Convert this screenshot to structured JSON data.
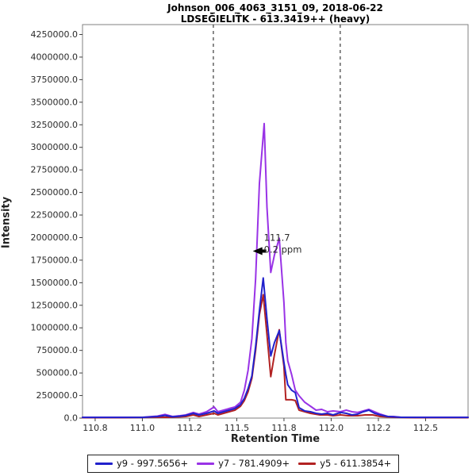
{
  "title": {
    "line1": "Johnson_006_4063_3151_09, 2018-06-22",
    "line2": "LDSEḠIELIT̄K - 61̄3.341̄9++ (heavy)"
  },
  "axes": {
    "x_label": "Retention Time",
    "y_label": "Intensity"
  },
  "legend": {
    "items": [
      {
        "label": "y9 - 997.5656+",
        "color": "#2121cc"
      },
      {
        "label": "y7 - 781.4909+",
        "color": "#9933e6"
      },
      {
        "label": "y5 - 611.3854+",
        "color": "#b22222"
      }
    ]
  },
  "chart_data": {
    "type": "line",
    "title": "Johnson_006_4063_3151_09, 2018-06-22",
    "subtitle": "LDSEḠIELIT̄K - 61̄3.341̄9++ (heavy)",
    "xlabel": "Retention Time",
    "ylabel": "Intensity",
    "xlim": [
      110.683,
      112.725
    ],
    "ylim": [
      0,
      4360000
    ],
    "grid": false,
    "legend_position": "bottom",
    "x_ticks": [
      {
        "t": 110.75,
        "label": "110.8"
      },
      {
        "t": 111.0,
        "label": "111.0"
      },
      {
        "t": 111.25,
        "label": "111.2"
      },
      {
        "t": 111.5,
        "label": "111.5"
      },
      {
        "t": 111.75,
        "label": "111.8"
      },
      {
        "t": 112.0,
        "label": "112.0"
      },
      {
        "t": 112.25,
        "label": "112.2"
      },
      {
        "t": 112.5,
        "label": "112.5"
      }
    ],
    "y_ticks": [
      {
        "v": 0,
        "label": "0.0"
      },
      {
        "v": 250000,
        "label": "250000.0"
      },
      {
        "v": 500000,
        "label": "500000.0"
      },
      {
        "v": 750000,
        "label": "750000.0"
      },
      {
        "v": 1000000,
        "label": "1000000.0"
      },
      {
        "v": 1250000,
        "label": "1250000.0"
      },
      {
        "v": 1500000,
        "label": "1500000.0"
      },
      {
        "v": 1750000,
        "label": "1750000.0"
      },
      {
        "v": 2000000,
        "label": "2000000.0"
      },
      {
        "v": 2250000,
        "label": "2250000.0"
      },
      {
        "v": 2500000,
        "label": "2500000.0"
      },
      {
        "v": 2750000,
        "label": "2750000.0"
      },
      {
        "v": 3000000,
        "label": "3000000.0"
      },
      {
        "v": 3250000,
        "label": "3250000.0"
      },
      {
        "v": 3500000,
        "label": "3500000.0"
      },
      {
        "v": 3750000,
        "label": "3750000.0"
      },
      {
        "v": 4000000,
        "label": "4000000.0"
      },
      {
        "v": 4250000,
        "label": "4250000.0"
      }
    ],
    "integration_boundaries": [
      111.376,
      112.048
    ],
    "annotation": {
      "line1": "111.7",
      "line2": "0.2 ppm",
      "color": "#9a3ae0",
      "arrow_time": 111.585,
      "arrow_intensity": 1850000
    },
    "draw_order": [
      1,
      2,
      0
    ],
    "series": [
      {
        "name": "y9 - 997.5656+",
        "color": "#2121cc",
        "points": [
          [
            110.683,
            8000
          ],
          [
            110.85,
            8000
          ],
          [
            111.0,
            8000
          ],
          [
            111.08,
            18000
          ],
          [
            111.12,
            30000
          ],
          [
            111.16,
            14000
          ],
          [
            111.2,
            22000
          ],
          [
            111.23,
            30000
          ],
          [
            111.27,
            53000
          ],
          [
            111.3,
            35000
          ],
          [
            111.34,
            53000
          ],
          [
            111.38,
            79000
          ],
          [
            111.4,
            53000
          ],
          [
            111.43,
            70000
          ],
          [
            111.46,
            88000
          ],
          [
            111.49,
            106000
          ],
          [
            111.52,
            150000
          ],
          [
            111.54,
            220000
          ],
          [
            111.56,
            326000
          ],
          [
            111.58,
            467000
          ],
          [
            111.6,
            794000
          ],
          [
            111.62,
            1190000
          ],
          [
            111.64,
            1552000
          ],
          [
            111.66,
            1102000
          ],
          [
            111.68,
            688000
          ],
          [
            111.7,
            838000
          ],
          [
            111.725,
            970000
          ],
          [
            111.75,
            617000
          ],
          [
            111.76,
            485000
          ],
          [
            111.77,
            370000
          ],
          [
            111.79,
            309000
          ],
          [
            111.81,
            282000
          ],
          [
            111.83,
            115000
          ],
          [
            111.86,
            79000
          ],
          [
            111.89,
            70000
          ],
          [
            111.92,
            53000
          ],
          [
            111.95,
            44000
          ],
          [
            111.98,
            53000
          ],
          [
            112.01,
            35000
          ],
          [
            112.05,
            62000
          ],
          [
            112.08,
            53000
          ],
          [
            112.11,
            35000
          ],
          [
            112.14,
            44000
          ],
          [
            112.17,
            70000
          ],
          [
            112.2,
            88000
          ],
          [
            112.23,
            53000
          ],
          [
            112.26,
            35000
          ],
          [
            112.3,
            18000
          ],
          [
            112.37,
            9000
          ],
          [
            112.5,
            8000
          ],
          [
            112.65,
            8000
          ],
          [
            112.725,
            8000
          ]
        ]
      },
      {
        "name": "y7 - 781.4909+",
        "color": "#9933e6",
        "points": [
          [
            110.683,
            9000
          ],
          [
            110.85,
            9000
          ],
          [
            111.0,
            9000
          ],
          [
            111.08,
            22000
          ],
          [
            111.12,
            40000
          ],
          [
            111.16,
            18000
          ],
          [
            111.2,
            26000
          ],
          [
            111.23,
            35000
          ],
          [
            111.27,
            62000
          ],
          [
            111.3,
            44000
          ],
          [
            111.34,
            70000
          ],
          [
            111.38,
            123000
          ],
          [
            111.4,
            70000
          ],
          [
            111.43,
            88000
          ],
          [
            111.46,
            106000
          ],
          [
            111.49,
            123000
          ],
          [
            111.52,
            176000
          ],
          [
            111.54,
            309000
          ],
          [
            111.56,
            529000
          ],
          [
            111.58,
            882000
          ],
          [
            111.6,
            1543000
          ],
          [
            111.62,
            2601000
          ],
          [
            111.645,
            3263000
          ],
          [
            111.66,
            2337000
          ],
          [
            111.68,
            1614000
          ],
          [
            111.7,
            1810000
          ],
          [
            111.725,
            1993000
          ],
          [
            111.75,
            1279000
          ],
          [
            111.76,
            838000
          ],
          [
            111.77,
            635000
          ],
          [
            111.79,
            485000
          ],
          [
            111.81,
            309000
          ],
          [
            111.83,
            247000
          ],
          [
            111.86,
            176000
          ],
          [
            111.89,
            132000
          ],
          [
            111.92,
            88000
          ],
          [
            111.95,
            97000
          ],
          [
            111.98,
            70000
          ],
          [
            112.01,
            79000
          ],
          [
            112.05,
            70000
          ],
          [
            112.08,
            88000
          ],
          [
            112.11,
            70000
          ],
          [
            112.14,
            62000
          ],
          [
            112.17,
            79000
          ],
          [
            112.2,
            97000
          ],
          [
            112.23,
            70000
          ],
          [
            112.26,
            44000
          ],
          [
            112.3,
            18000
          ],
          [
            112.33,
            18000
          ],
          [
            112.37,
            9000
          ],
          [
            112.45,
            9000
          ],
          [
            112.55,
            9000
          ],
          [
            112.65,
            9000
          ],
          [
            112.725,
            9000
          ]
        ]
      },
      {
        "name": "y5 - 611.3854+",
        "color": "#b22222",
        "points": [
          [
            110.683,
            4000
          ],
          [
            110.9,
            4000
          ],
          [
            111.08,
            9000
          ],
          [
            111.16,
            9000
          ],
          [
            111.23,
            18000
          ],
          [
            111.27,
            35000
          ],
          [
            111.3,
            18000
          ],
          [
            111.34,
            35000
          ],
          [
            111.38,
            53000
          ],
          [
            111.4,
            35000
          ],
          [
            111.43,
            53000
          ],
          [
            111.46,
            70000
          ],
          [
            111.49,
            88000
          ],
          [
            111.52,
            132000
          ],
          [
            111.54,
            194000
          ],
          [
            111.56,
            291000
          ],
          [
            111.58,
            441000
          ],
          [
            111.6,
            750000
          ],
          [
            111.62,
            1146000
          ],
          [
            111.64,
            1367000
          ],
          [
            111.66,
            926000
          ],
          [
            111.68,
            459000
          ],
          [
            111.7,
            705000
          ],
          [
            111.725,
            979000
          ],
          [
            111.75,
            573000
          ],
          [
            111.76,
            203000
          ],
          [
            111.79,
            203000
          ],
          [
            111.81,
            194000
          ],
          [
            111.83,
            88000
          ],
          [
            111.86,
            70000
          ],
          [
            111.89,
            53000
          ],
          [
            111.94,
            35000
          ],
          [
            111.98,
            35000
          ],
          [
            112.01,
            26000
          ],
          [
            112.05,
            35000
          ],
          [
            112.09,
            26000
          ],
          [
            112.14,
            26000
          ],
          [
            112.18,
            35000
          ],
          [
            112.22,
            35000
          ],
          [
            112.26,
            18000
          ],
          [
            112.33,
            9000
          ],
          [
            112.45,
            4000
          ],
          [
            112.6,
            4000
          ],
          [
            112.725,
            4000
          ]
        ]
      }
    ]
  }
}
